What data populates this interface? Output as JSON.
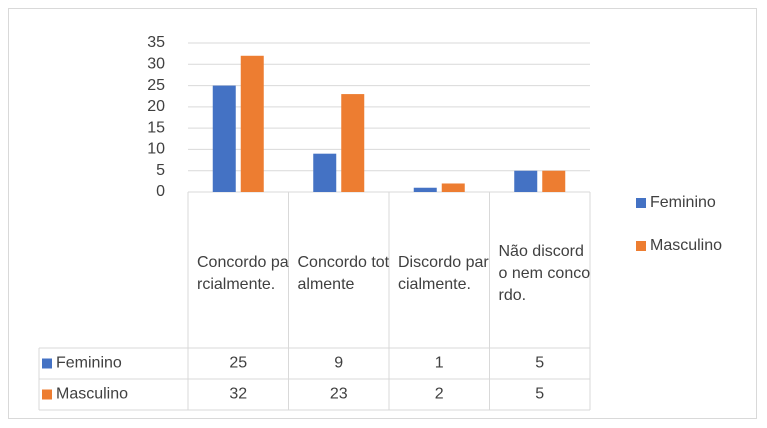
{
  "chart_data": {
    "type": "bar",
    "categories": [
      "Concordo parcialmente.",
      "Concordo totalmente",
      "Discordo parcialmente.",
      "Não discordo nem concordo."
    ],
    "series": [
      {
        "name": "Feminino",
        "color": "#4472c4",
        "values": [
          25,
          9,
          1,
          5
        ]
      },
      {
        "name": "Masculino",
        "color": "#ed7d31",
        "values": [
          32,
          23,
          2,
          5
        ]
      }
    ],
    "ylim": [
      0,
      35
    ],
    "yticks": [
      0,
      5,
      10,
      15,
      20,
      25,
      30,
      35
    ],
    "grid": true,
    "legend": "right",
    "data_table": true
  }
}
